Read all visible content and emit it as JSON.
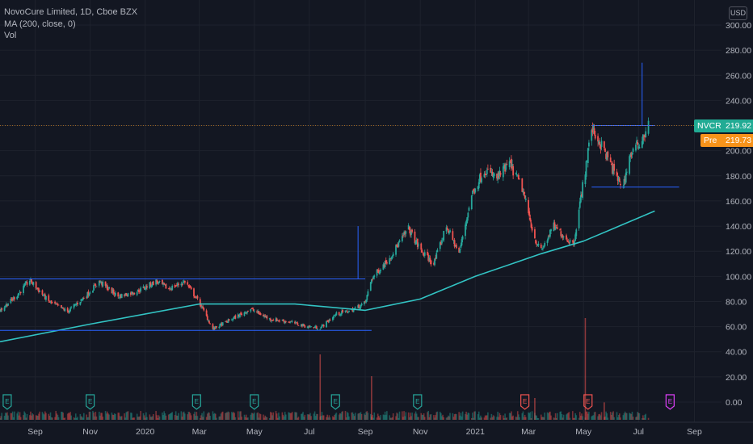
{
  "legend": {
    "symbol_line": "NovoCure Limited, 1D, Cboe BZX",
    "indicator": "MA (200, close, 0)",
    "volume": "Vol"
  },
  "currency_button": "USD",
  "price_axis_labels": [
    "300.00",
    "280.00",
    "260.00",
    "240.00",
    "220.00",
    "200.00",
    "180.00",
    "160.00",
    "140.00",
    "120.00",
    "100.00",
    "80.00",
    "60.00",
    "40.00",
    "20.00",
    "0.00"
  ],
  "time_axis_labels": [
    "Sep",
    "Nov",
    "2020",
    "Mar",
    "May",
    "Jul",
    "Sep",
    "Nov",
    "2021",
    "Mar",
    "May",
    "Jul",
    "Sep"
  ],
  "last_price_tag": {
    "symbol": "NVCR",
    "value": "219.92",
    "color": "#22ab94"
  },
  "premarket_tag": {
    "symbol": "Pre",
    "value": "219.73",
    "color": "#f7931a"
  },
  "earnings_marker": "E",
  "colors": {
    "up": "#26a69a",
    "down": "#ef5350",
    "ma": "#32c3c3",
    "drawing": "#2962ff",
    "background": "#131722",
    "grid": "#1e222d"
  },
  "chart_data": {
    "type": "candlestick",
    "title": "NovoCure Limited, 1D, Cboe BZX",
    "ylim": [
      -12,
      306
    ],
    "y_ticks": [
      0,
      20,
      40,
      60,
      80,
      100,
      120,
      140,
      160,
      180,
      200,
      220,
      240,
      260,
      280,
      300
    ],
    "x_labels": [
      "Sep",
      "Nov",
      "2020",
      "Mar",
      "May",
      "Jul",
      "Sep",
      "Nov",
      "2021",
      "Mar",
      "May",
      "Jul",
      "Sep"
    ],
    "price_path_approx": [
      [
        "2019-07-24",
        73
      ],
      [
        "2019-08-12",
        85
      ],
      [
        "2019-08-26",
        97
      ],
      [
        "2019-09-16",
        80
      ],
      [
        "2019-10-07",
        72
      ],
      [
        "2019-10-28",
        85
      ],
      [
        "2019-11-11",
        96
      ],
      [
        "2019-12-02",
        84
      ],
      [
        "2019-12-23",
        88
      ],
      [
        "2020-01-13",
        96
      ],
      [
        "2020-01-27",
        90
      ],
      [
        "2020-02-14",
        96
      ],
      [
        "2020-03-02",
        78
      ],
      [
        "2020-03-16",
        58
      ],
      [
        "2020-04-06",
        66
      ],
      [
        "2020-04-27",
        74
      ],
      [
        "2020-05-18",
        66
      ],
      [
        "2020-06-08",
        64
      ],
      [
        "2020-06-29",
        60
      ],
      [
        "2020-07-13",
        59
      ],
      [
        "2020-07-31",
        70
      ],
      [
        "2020-08-17",
        73
      ],
      [
        "2020-09-01",
        79
      ],
      [
        "2020-09-08",
        98
      ],
      [
        "2020-09-28",
        115
      ],
      [
        "2020-10-19",
        138
      ],
      [
        "2020-11-02",
        120
      ],
      [
        "2020-11-16",
        110
      ],
      [
        "2020-11-30",
        140
      ],
      [
        "2020-12-14",
        118
      ],
      [
        "2020-12-28",
        165
      ],
      [
        "2021-01-11",
        185
      ],
      [
        "2021-01-25",
        178
      ],
      [
        "2021-02-08",
        190
      ],
      [
        "2021-02-22",
        170
      ],
      [
        "2021-03-08",
        130
      ],
      [
        "2021-03-15",
        120
      ],
      [
        "2021-03-29",
        140
      ],
      [
        "2021-04-12",
        130
      ],
      [
        "2021-04-20",
        126
      ],
      [
        "2021-05-03",
        185
      ],
      [
        "2021-05-10",
        218
      ],
      [
        "2021-05-24",
        200
      ],
      [
        "2021-06-07",
        178
      ],
      [
        "2021-06-14",
        172
      ],
      [
        "2021-06-21",
        195
      ],
      [
        "2021-07-05",
        210
      ],
      [
        "2021-07-12",
        219.92
      ]
    ],
    "ma200_approx": [
      [
        "2019-07-24",
        48
      ],
      [
        "2019-11-01",
        62
      ],
      [
        "2020-03-01",
        78
      ],
      [
        "2020-06-15",
        78
      ],
      [
        "2020-09-01",
        73
      ],
      [
        "2020-11-01",
        82
      ],
      [
        "2021-01-01",
        100
      ],
      [
        "2021-03-15",
        118
      ],
      [
        "2021-05-01",
        128
      ],
      [
        "2021-07-19",
        152
      ]
    ],
    "volume_spikes_approx": [
      [
        "2020-07-13",
        45
      ],
      [
        "2020-09-08",
        30
      ],
      [
        "2021-03-08",
        15
      ],
      [
        "2021-05-03",
        70
      ],
      [
        "2021-05-24",
        12
      ]
    ],
    "current_price": 219.92,
    "premarket_price": 219.73,
    "drawings": [
      {
        "type": "horizontal",
        "y": 98,
        "from": "2019-07-24",
        "to": "2020-09-01"
      },
      {
        "type": "horizontal",
        "y": 57,
        "from": "2019-07-24",
        "to": "2020-09-08"
      },
      {
        "type": "vertical",
        "x": "2020-08-24",
        "y_from": 98,
        "y_to": 140
      },
      {
        "type": "horizontal",
        "y": 220,
        "from": "2021-05-10",
        "to": "2021-07-19"
      },
      {
        "type": "horizontal",
        "y": 171,
        "from": "2021-05-10",
        "to": "2021-08-15"
      },
      {
        "type": "vertical",
        "x": "2021-07-05",
        "y_from": 220,
        "y_to": 270
      }
    ],
    "earnings": [
      {
        "date": "2019-08-01",
        "color": "#26a69a"
      },
      {
        "date": "2019-11-01",
        "color": "#26a69a"
      },
      {
        "date": "2020-02-27",
        "color": "#26a69a"
      },
      {
        "date": "2020-05-01",
        "color": "#26a69a"
      },
      {
        "date": "2020-07-30",
        "color": "#26a69a"
      },
      {
        "date": "2020-10-29",
        "color": "#26a69a"
      },
      {
        "date": "2021-02-25",
        "color": "#ef5350"
      },
      {
        "date": "2021-05-06",
        "color": "#ef5350"
      },
      {
        "date": "2021-08-05",
        "color": "#e040fb"
      }
    ]
  }
}
